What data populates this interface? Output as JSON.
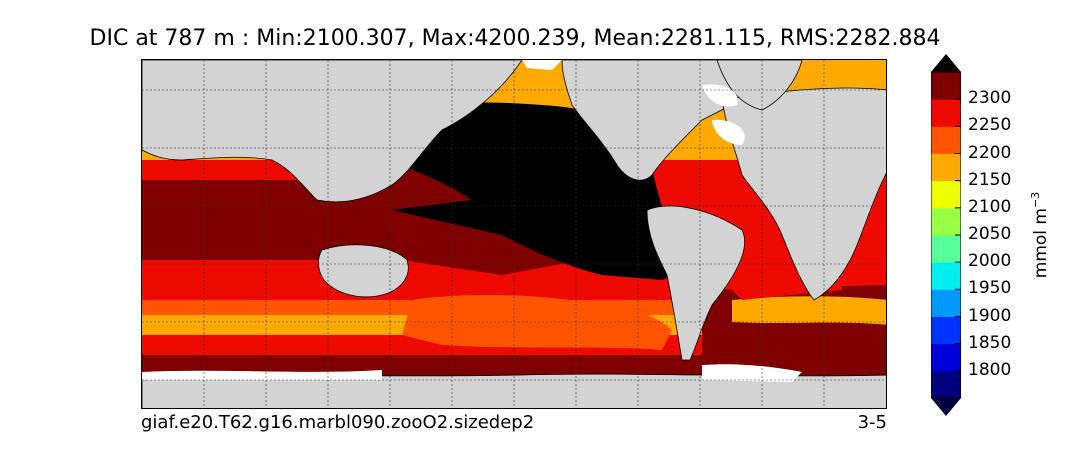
{
  "title": "DIC at 787 m : Min:2100.307, Max:4200.239, Mean:2281.115, RMS:2282.884",
  "caption_left": "giaf.e20.T62.g16.marbl090.zooO2.sizedep2",
  "caption_right": "3-5",
  "colorbar": {
    "units": "mmol m",
    "units_exponent": "−3",
    "ticks": [
      "1800",
      "1850",
      "1900",
      "1950",
      "2000",
      "2050",
      "2100",
      "2150",
      "2200",
      "2250",
      "2300"
    ],
    "colors": [
      "#00007f",
      "#0000d9",
      "#0033ff",
      "#0099ff",
      "#00eeee",
      "#55ff99",
      "#99ff44",
      "#eeff00",
      "#ffaa00",
      "#ff5500",
      "#ee0a00",
      "#7f0000"
    ],
    "under_color": "#000040",
    "over_color": "#000000"
  },
  "map": {
    "land_color": "#d3d3d3",
    "missing_color": "#ffffff",
    "max_region_color": "#000000"
  }
}
